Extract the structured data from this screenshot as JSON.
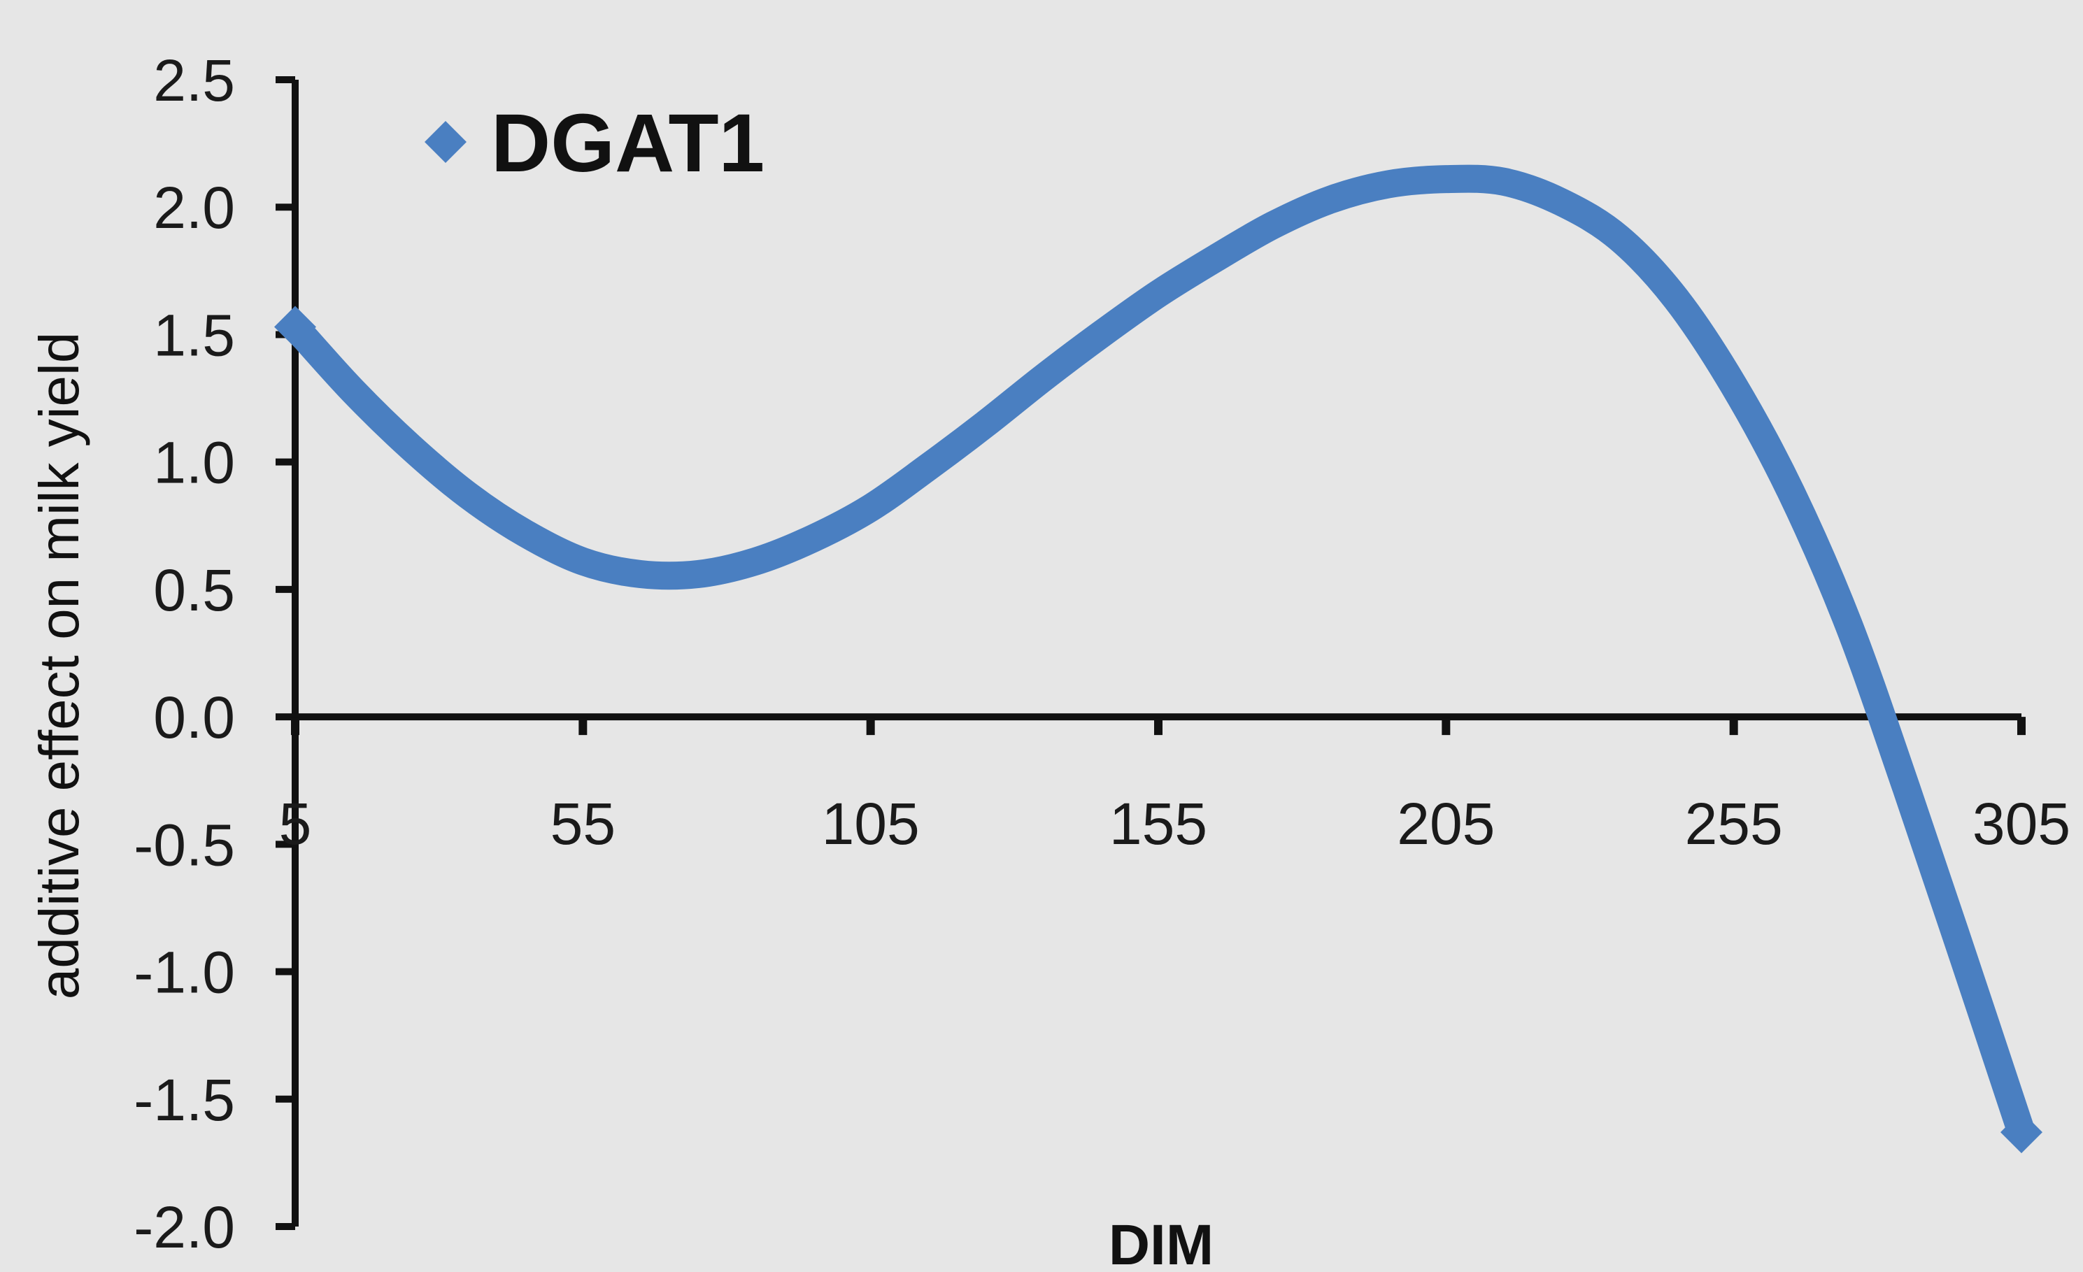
{
  "chart_data": {
    "type": "line",
    "title": "",
    "xlabel": "DIM",
    "ylabel": "additive effect on milk yield",
    "xlim": [
      5,
      305
    ],
    "ylim": [
      -2.0,
      2.5
    ],
    "x_ticks": [
      5,
      55,
      105,
      155,
      205,
      255,
      305
    ],
    "x_tick_labels": [
      "5",
      "55",
      "105",
      "155",
      "205",
      "255",
      "305"
    ],
    "y_ticks": [
      2.5,
      2.0,
      1.5,
      1.0,
      0.5,
      0.0,
      -0.5,
      -1.0,
      -1.5,
      -2.0
    ],
    "y_tick_labels": [
      "2.5",
      "2.0",
      "1.5",
      "1.0",
      "0.5",
      "0.0",
      "-0.5",
      "-1.0",
      "-1.5",
      "-2.0"
    ],
    "grid": false,
    "legend_position": "top-left",
    "colors": {
      "series": "#4a7fc1",
      "axis": "#111111"
    },
    "series": [
      {
        "name": "DGAT1",
        "marker": "diamond",
        "x": [
          5,
          15,
          25,
          35,
          45,
          55,
          65,
          75,
          85,
          95,
          105,
          115,
          125,
          135,
          145,
          155,
          165,
          175,
          185,
          195,
          205,
          215,
          225,
          235,
          245,
          255,
          265,
          275,
          285,
          295,
          305
        ],
        "y": [
          1.53,
          1.28,
          1.06,
          0.87,
          0.72,
          0.61,
          0.56,
          0.56,
          0.61,
          0.7,
          0.82,
          0.98,
          1.15,
          1.33,
          1.5,
          1.66,
          1.8,
          1.93,
          2.03,
          2.09,
          2.11,
          2.1,
          2.02,
          1.88,
          1.64,
          1.3,
          0.88,
          0.36,
          -0.28,
          -0.95,
          -1.63
        ]
      }
    ]
  }
}
